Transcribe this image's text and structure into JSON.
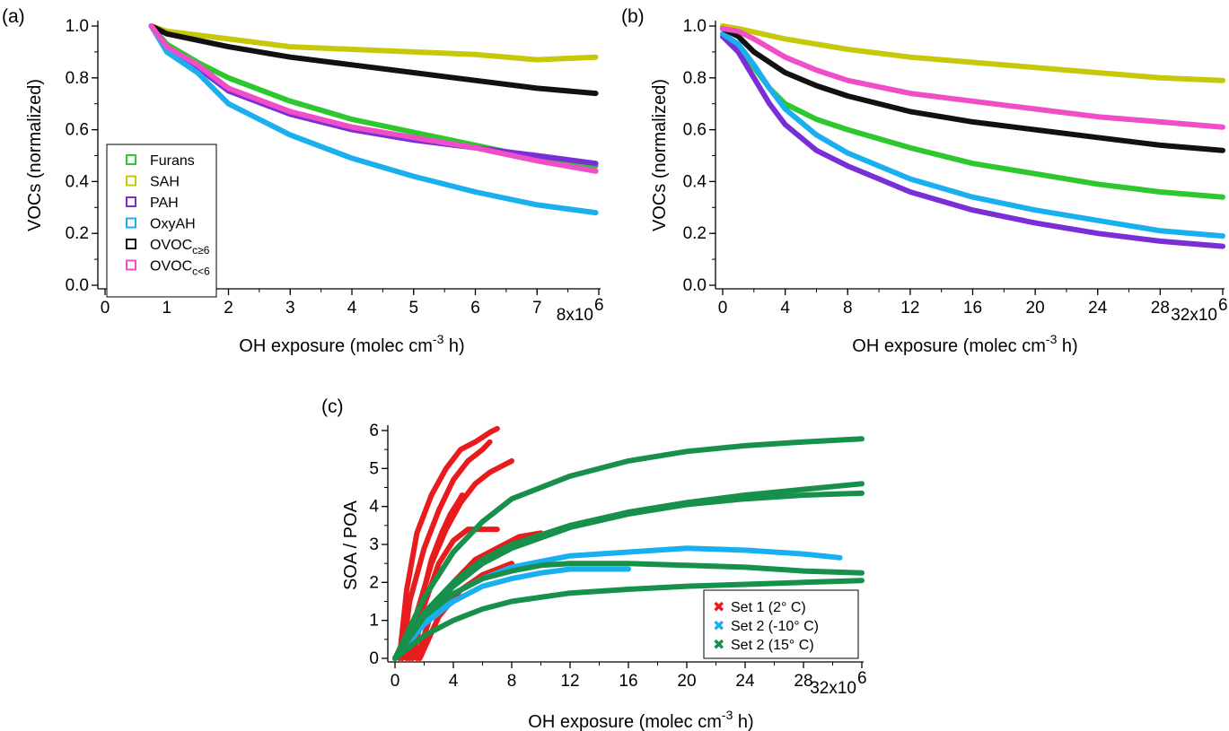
{
  "chart_data": [
    {
      "panel": "(a)",
      "type": "line",
      "xlabel": "OH exposure (molec cm",
      "xlabel_sup": "-3",
      "xlabel_end": " h)",
      "ylabel": "VOCs (normalized)",
      "xlim": [
        0,
        8
      ],
      "ylim": [
        0,
        1.0
      ],
      "x_ticks": [
        "0",
        "1",
        "2",
        "3",
        "4",
        "5",
        "6",
        "7"
      ],
      "x_end_label": "8x10",
      "x_end_sup": "6",
      "y_ticks": [
        "0.0",
        "0.2",
        "0.4",
        "0.6",
        "0.8",
        "1.0"
      ],
      "legend": "left",
      "series": [
        {
          "name": "Furans",
          "color": "#2ec82e",
          "x": [
            0.75,
            1,
            1.5,
            2,
            3,
            4,
            5,
            6,
            7,
            7.95
          ],
          "y": [
            1.0,
            0.93,
            0.86,
            0.8,
            0.71,
            0.64,
            0.59,
            0.54,
            0.49,
            0.46
          ]
        },
        {
          "name": "SAH",
          "color": "#c8c80a",
          "x": [
            0.75,
            1,
            2,
            3,
            4,
            5,
            6,
            7,
            7.95
          ],
          "y": [
            1.0,
            0.98,
            0.95,
            0.92,
            0.91,
            0.9,
            0.89,
            0.87,
            0.88
          ]
        },
        {
          "name": "PAH",
          "color": "#7a2fd6",
          "x": [
            0.75,
            1,
            1.5,
            2,
            3,
            4,
            5,
            6,
            7,
            7.95
          ],
          "y": [
            1.0,
            0.92,
            0.84,
            0.75,
            0.66,
            0.6,
            0.56,
            0.53,
            0.5,
            0.47
          ]
        },
        {
          "name": "OxyAH",
          "color": "#1ab0f0",
          "x": [
            0.75,
            1,
            1.5,
            2,
            3,
            4,
            5,
            6,
            7,
            7.95
          ],
          "y": [
            1.0,
            0.9,
            0.82,
            0.7,
            0.58,
            0.49,
            0.42,
            0.36,
            0.31,
            0.28
          ]
        },
        {
          "name": "OVOC",
          "name_sub": "c≥6",
          "color": "#111111",
          "x": [
            0.75,
            1,
            2,
            3,
            4,
            5,
            6,
            7,
            7.95
          ],
          "y": [
            1.0,
            0.97,
            0.92,
            0.88,
            0.85,
            0.82,
            0.79,
            0.76,
            0.74
          ]
        },
        {
          "name": "OVOC",
          "name_sub": "c<6",
          "color": "#f04ec8",
          "x": [
            0.75,
            1,
            1.5,
            2,
            3,
            4,
            5,
            6,
            7,
            7.95
          ],
          "y": [
            1.0,
            0.92,
            0.85,
            0.76,
            0.67,
            0.61,
            0.57,
            0.53,
            0.48,
            0.44
          ]
        }
      ]
    },
    {
      "panel": "(b)",
      "type": "line",
      "xlabel": "OH exposure (molec cm",
      "xlabel_sup": "-3",
      "xlabel_end": " h)",
      "ylabel": "VOCs (normalized)",
      "xlim": [
        0,
        32
      ],
      "ylim": [
        0,
        1.0
      ],
      "x_ticks": [
        "0",
        "4",
        "8",
        "12",
        "16",
        "20",
        "24",
        "28"
      ],
      "x_end_label": "32x10",
      "x_end_sup": "6",
      "y_ticks": [
        "0.0",
        "0.2",
        "0.4",
        "0.6",
        "0.8",
        "1.0"
      ],
      "series": [
        {
          "name": "Furans",
          "color": "#2ec82e",
          "x": [
            0,
            1,
            2,
            3,
            4,
            6,
            8,
            12,
            16,
            20,
            24,
            28,
            32
          ],
          "y": [
            0.96,
            0.92,
            0.84,
            0.76,
            0.7,
            0.64,
            0.6,
            0.53,
            0.47,
            0.43,
            0.39,
            0.36,
            0.34
          ]
        },
        {
          "name": "SAH",
          "color": "#c8c80a",
          "x": [
            0,
            1,
            4,
            8,
            12,
            16,
            20,
            24,
            28,
            32
          ],
          "y": [
            1.0,
            0.99,
            0.95,
            0.91,
            0.88,
            0.86,
            0.84,
            0.82,
            0.8,
            0.79
          ]
        },
        {
          "name": "PAH",
          "color": "#7a2fd6",
          "x": [
            0,
            1,
            2,
            3,
            4,
            6,
            8,
            10,
            12,
            16,
            20,
            24,
            28,
            32
          ],
          "y": [
            0.96,
            0.9,
            0.8,
            0.7,
            0.62,
            0.52,
            0.46,
            0.41,
            0.36,
            0.29,
            0.24,
            0.2,
            0.17,
            0.15
          ]
        },
        {
          "name": "OxyAH",
          "color": "#1ab0f0",
          "x": [
            0,
            1,
            2,
            3,
            4,
            6,
            8,
            12,
            16,
            20,
            24,
            28,
            32
          ],
          "y": [
            0.97,
            0.93,
            0.85,
            0.76,
            0.68,
            0.58,
            0.51,
            0.41,
            0.34,
            0.29,
            0.25,
            0.21,
            0.19
          ]
        },
        {
          "name": "OVOC",
          "name_sub": "c≥6",
          "color": "#111111",
          "x": [
            0,
            1,
            2,
            4,
            6,
            8,
            12,
            16,
            20,
            24,
            28,
            32
          ],
          "y": [
            0.99,
            0.96,
            0.9,
            0.82,
            0.77,
            0.73,
            0.67,
            0.63,
            0.6,
            0.57,
            0.54,
            0.52
          ]
        },
        {
          "name": "OVOC",
          "name_sub": "c<6",
          "color": "#f04ec8",
          "x": [
            0,
            1,
            2,
            4,
            6,
            8,
            12,
            16,
            20,
            24,
            28,
            32
          ],
          "y": [
            0.99,
            0.98,
            0.95,
            0.88,
            0.83,
            0.79,
            0.74,
            0.71,
            0.68,
            0.65,
            0.63,
            0.61
          ]
        }
      ]
    },
    {
      "panel": "(c)",
      "type": "line",
      "xlabel": "OH exposure (molec cm",
      "xlabel_sup": "-3",
      "xlabel_end": " h)",
      "ylabel": "SOA / POA",
      "xlim": [
        0,
        32
      ],
      "ylim": [
        0,
        6
      ],
      "x_ticks": [
        "0",
        "4",
        "8",
        "12",
        "16",
        "20",
        "24",
        "28"
      ],
      "x_end_label": "32x10",
      "x_end_sup": "6",
      "y_ticks": [
        "0",
        "1",
        "2",
        "3",
        "4",
        "5",
        "6"
      ],
      "legend": "bottom-right",
      "legend_entries": [
        {
          "name": "Set 1 (2° C)",
          "color": "#e81c1c"
        },
        {
          "name": "Set 2 (-10° C)",
          "color": "#1ab0f0"
        },
        {
          "name": "Set 2 (15° C)",
          "color": "#16904a"
        }
      ],
      "series": [
        {
          "group": "Set 1 (2° C)",
          "color": "#e81c1c",
          "x": [
            0.3,
            0.8,
            1.5,
            2.5,
            3.5,
            4.5,
            5.5,
            6.5,
            7.0
          ],
          "y": [
            0,
            1.8,
            3.3,
            4.3,
            5.0,
            5.5,
            5.7,
            5.95,
            6.05
          ]
        },
        {
          "group": "Set 1 (2° C)",
          "color": "#e81c1c",
          "x": [
            0.5,
            1,
            2,
            3,
            4,
            5,
            6,
            6.5
          ],
          "y": [
            0,
            1.5,
            2.9,
            3.9,
            4.7,
            5.2,
            5.5,
            5.7
          ]
        },
        {
          "group": "Set 1 (2° C)",
          "color": "#e81c1c",
          "x": [
            0.8,
            1.5,
            2.5,
            3.5,
            4.5,
            5.5,
            6.5,
            7.5,
            8.0
          ],
          "y": [
            0,
            1.2,
            2.5,
            3.4,
            4.1,
            4.6,
            4.9,
            5.1,
            5.2
          ]
        },
        {
          "group": "Set 1 (2° C)",
          "color": "#e81c1c",
          "x": [
            1.0,
            1.8,
            2.5,
            3.2,
            3.8,
            4.3,
            4.6
          ],
          "y": [
            0,
            1.5,
            2.6,
            3.3,
            3.8,
            4.1,
            4.3
          ]
        },
        {
          "group": "Set 1 (2° C)",
          "color": "#e81c1c",
          "x": [
            1.2,
            2,
            3,
            4,
            5,
            6,
            7
          ],
          "y": [
            0,
            1.4,
            2.5,
            3.1,
            3.4,
            3.4,
            3.4
          ]
        },
        {
          "group": "Set 1 (2° C)",
          "color": "#e81c1c",
          "x": [
            1.5,
            2.5,
            4,
            5.5,
            7,
            8.5,
            10
          ],
          "y": [
            0,
            1.2,
            2.0,
            2.6,
            2.9,
            3.2,
            3.3
          ]
        },
        {
          "group": "Set 1 (2° C)",
          "color": "#e81c1c",
          "x": [
            1.7,
            3,
            4.5,
            6,
            8
          ],
          "y": [
            0,
            1.1,
            1.8,
            2.2,
            2.5
          ]
        },
        {
          "group": "Set 2 (-10° C)",
          "color": "#1ab0f0",
          "x": [
            0,
            2,
            4,
            6,
            8,
            10,
            12,
            16,
            20,
            24,
            28,
            30.5
          ],
          "y": [
            0,
            1.0,
            1.7,
            2.1,
            2.4,
            2.55,
            2.7,
            2.8,
            2.9,
            2.85,
            2.75,
            2.65
          ]
        },
        {
          "group": "Set 2 (-10° C)",
          "color": "#1ab0f0",
          "x": [
            0,
            2,
            4,
            6,
            8,
            10,
            12,
            14,
            16
          ],
          "y": [
            0,
            0.9,
            1.5,
            1.9,
            2.1,
            2.25,
            2.35,
            2.35,
            2.35
          ]
        },
        {
          "group": "Set 2 (15° C)",
          "color": "#16904a",
          "x": [
            0,
            2,
            4,
            6,
            8,
            12,
            16,
            20,
            24,
            28,
            32
          ],
          "y": [
            0,
            1.6,
            2.8,
            3.6,
            4.2,
            4.8,
            5.2,
            5.45,
            5.6,
            5.7,
            5.78
          ]
        },
        {
          "group": "Set 2 (15° C)",
          "color": "#16904a",
          "x": [
            0,
            2,
            4,
            6,
            8,
            12,
            16,
            20,
            24,
            28,
            32
          ],
          "y": [
            0,
            1.2,
            2.0,
            2.6,
            3.0,
            3.5,
            3.85,
            4.1,
            4.3,
            4.45,
            4.6
          ]
        },
        {
          "group": "Set 2 (15° C)",
          "color": "#16904a",
          "x": [
            0,
            2,
            4,
            6,
            8,
            12,
            16,
            20,
            24,
            28,
            32
          ],
          "y": [
            0,
            1.1,
            1.9,
            2.5,
            2.9,
            3.45,
            3.8,
            4.05,
            4.2,
            4.3,
            4.35
          ]
        },
        {
          "group": "Set 2 (15° C)",
          "color": "#16904a",
          "x": [
            0,
            2,
            4,
            6,
            8,
            10,
            12,
            16,
            20,
            24,
            28,
            32
          ],
          "y": [
            0,
            1.1,
            1.7,
            2.1,
            2.3,
            2.45,
            2.5,
            2.5,
            2.45,
            2.4,
            2.3,
            2.25
          ]
        },
        {
          "group": "Set 2 (15° C)",
          "color": "#16904a",
          "x": [
            0,
            2,
            4,
            6,
            8,
            12,
            16,
            20,
            24,
            28,
            32
          ],
          "y": [
            0,
            0.6,
            1.0,
            1.3,
            1.5,
            1.72,
            1.82,
            1.9,
            1.95,
            2.0,
            2.05
          ]
        }
      ]
    }
  ]
}
